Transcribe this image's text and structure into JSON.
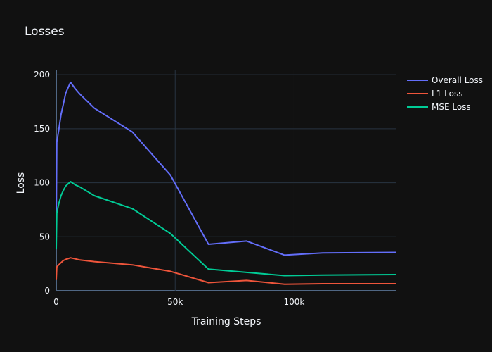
{
  "chart_data": {
    "type": "line",
    "title": "Losses",
    "xlabel": "Training Steps",
    "ylabel": "Loss",
    "xlim": [
      0,
      143000
    ],
    "ylim": [
      0,
      204
    ],
    "x_ticks": [
      0,
      50000,
      100000
    ],
    "x_tick_labels": [
      "0",
      "50k",
      "100k"
    ],
    "y_ticks": [
      0,
      50,
      100,
      150,
      200
    ],
    "y_tick_labels": [
      "0",
      "50",
      "100",
      "150",
      "200"
    ],
    "grid": true,
    "legend_position": "top-right",
    "colors": {
      "background": "#111111",
      "grid": "#283442",
      "zeroline": "#506784",
      "text": "#f2f5fa"
    },
    "series": [
      {
        "name": "Overall Loss",
        "color": "#636efa",
        "x": [
          0,
          250,
          1000,
          2000,
          3000,
          4000,
          6000,
          8000,
          10000,
          16000,
          32000,
          48000,
          64000,
          80000,
          96000,
          112000,
          143000
        ],
        "y": [
          61,
          138,
          148,
          163,
          173,
          183,
          193,
          187,
          182,
          169,
          147,
          107,
          43,
          46,
          33,
          35,
          35.5
        ]
      },
      {
        "name": "L1 Loss",
        "color": "#ef553b",
        "x": [
          0,
          250,
          1000,
          2000,
          3000,
          4000,
          6000,
          8000,
          10000,
          16000,
          32000,
          48000,
          64000,
          80000,
          96000,
          112000,
          143000
        ],
        "y": [
          10,
          22,
          24,
          26,
          28,
          29,
          30.5,
          29.5,
          28.5,
          27,
          24,
          18,
          7.5,
          9.5,
          6,
          6.5,
          6.5
        ]
      },
      {
        "name": "MSE Loss",
        "color": "#00cc96",
        "x": [
          0,
          250,
          1000,
          2000,
          3000,
          4000,
          6000,
          8000,
          10000,
          16000,
          32000,
          48000,
          64000,
          80000,
          96000,
          112000,
          143000
        ],
        "y": [
          39,
          72,
          80,
          88,
          93,
          97,
          101,
          98,
          96,
          88,
          76,
          53,
          20,
          17,
          14,
          14.5,
          15
        ]
      }
    ]
  }
}
